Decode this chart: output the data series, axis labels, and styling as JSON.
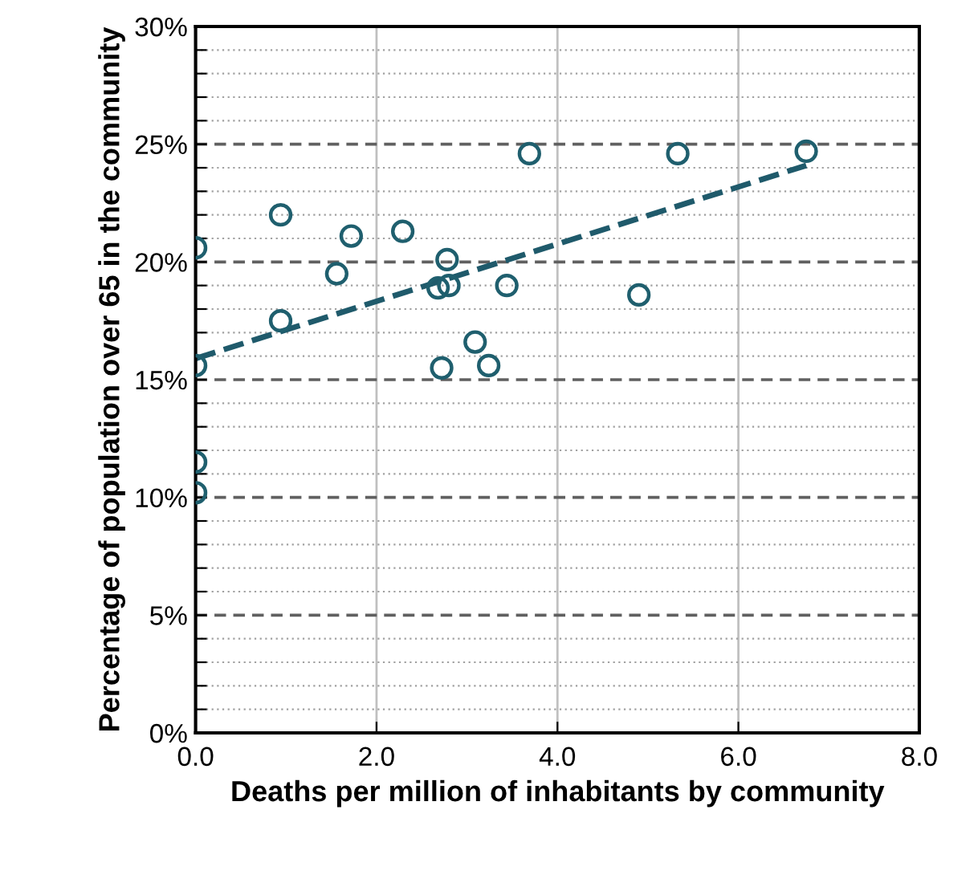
{
  "chart_data": {
    "type": "scatter",
    "xlabel": "Deaths per million of inhabitants by community",
    "ylabel": "Percentage of population over 65 in the community",
    "xlim": [
      0,
      8
    ],
    "xticks": [
      {
        "value": 0,
        "label": "0.0"
      },
      {
        "value": 2,
        "label": "2.0"
      },
      {
        "value": 4,
        "label": "4.0"
      },
      {
        "value": 6,
        "label": "6.0"
      },
      {
        "value": 8,
        "label": "8.0"
      }
    ],
    "ylim": [
      0,
      30
    ],
    "yticks": [
      {
        "value": 0,
        "label": "0%"
      },
      {
        "value": 1,
        "label": null
      },
      {
        "value": 2,
        "label": null
      },
      {
        "value": 3,
        "label": null
      },
      {
        "value": 4,
        "label": null
      },
      {
        "value": 5,
        "label": "5%"
      },
      {
        "value": 6,
        "label": null
      },
      {
        "value": 7,
        "label": null
      },
      {
        "value": 8,
        "label": null
      },
      {
        "value": 9,
        "label": null
      },
      {
        "value": 10,
        "label": "10%"
      },
      {
        "value": 11,
        "label": null
      },
      {
        "value": 12,
        "label": null
      },
      {
        "value": 13,
        "label": null
      },
      {
        "value": 14,
        "label": null
      },
      {
        "value": 15,
        "label": "15%"
      },
      {
        "value": 16,
        "label": null
      },
      {
        "value": 17,
        "label": null
      },
      {
        "value": 18,
        "label": null
      },
      {
        "value": 19,
        "label": null
      },
      {
        "value": 20,
        "label": "20%"
      },
      {
        "value": 21,
        "label": null
      },
      {
        "value": 22,
        "label": null
      },
      {
        "value": 23,
        "label": null
      },
      {
        "value": 24,
        "label": null
      },
      {
        "value": 25,
        "label": "25%"
      },
      {
        "value": 26,
        "label": null
      },
      {
        "value": 27,
        "label": null
      },
      {
        "value": 28,
        "label": null
      },
      {
        "value": 29,
        "label": null
      },
      {
        "value": 30,
        "label": "30%"
      }
    ],
    "grid": true,
    "marker": "circle",
    "legend": false,
    "series": [
      {
        "color": "#1f5f6e",
        "x": [
          0,
          0,
          0,
          0,
          0.94,
          0.94,
          1.56,
          1.72,
          2.29,
          2.68,
          2.8,
          2.78,
          2.72,
          3.09,
          3.24,
          3.44,
          3.69,
          4.9,
          5.33,
          6.75
        ],
        "values": [
          10.2,
          11.5,
          15.6,
          20.6,
          22.0,
          17.5,
          19.5,
          21.1,
          21.3,
          18.9,
          19.0,
          20.1,
          15.5,
          16.6,
          15.6,
          19.0,
          24.6,
          18.6,
          24.6,
          24.7
        ]
      },
      {
        "type": "line",
        "color": "#1f5a6b",
        "line_style": "dashed",
        "marker": "none",
        "x": [
          0,
          6.75
        ],
        "values": [
          15.9,
          24.1
        ]
      }
    ]
  }
}
